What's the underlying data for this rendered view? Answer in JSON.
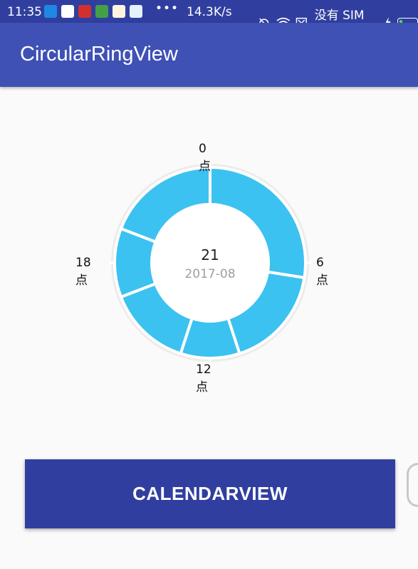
{
  "status_bar": {
    "time": "11:35",
    "overflow": "•••",
    "net_speed": "14.3K/s",
    "carrier": "没有 SIM 卡",
    "icons": [
      "usb-icon",
      "app-icon",
      "app-icon",
      "battery-saver-icon",
      "weibo-icon",
      "app-icon",
      "alarm-off-icon",
      "wifi-icon",
      "no-sim-icon",
      "charging-icon",
      "battery-icon"
    ]
  },
  "app_bar": {
    "title": "CircularRingView"
  },
  "ring": {
    "labels": {
      "top": "0点",
      "right": "6点",
      "bottom": "12点",
      "left": "18点"
    },
    "center_day": "21",
    "center_month": "2017-08",
    "colors": {
      "segment": "#3cc2f0",
      "track": "#ececec",
      "center": "#ffffff",
      "tick": "#ffffff"
    }
  },
  "button": {
    "label": "CALENDARVIEW"
  },
  "colors": {
    "status_bar": "#303f9f",
    "app_bar": "#3f51b5",
    "button": "#303f9f",
    "background": "#fafafa"
  }
}
